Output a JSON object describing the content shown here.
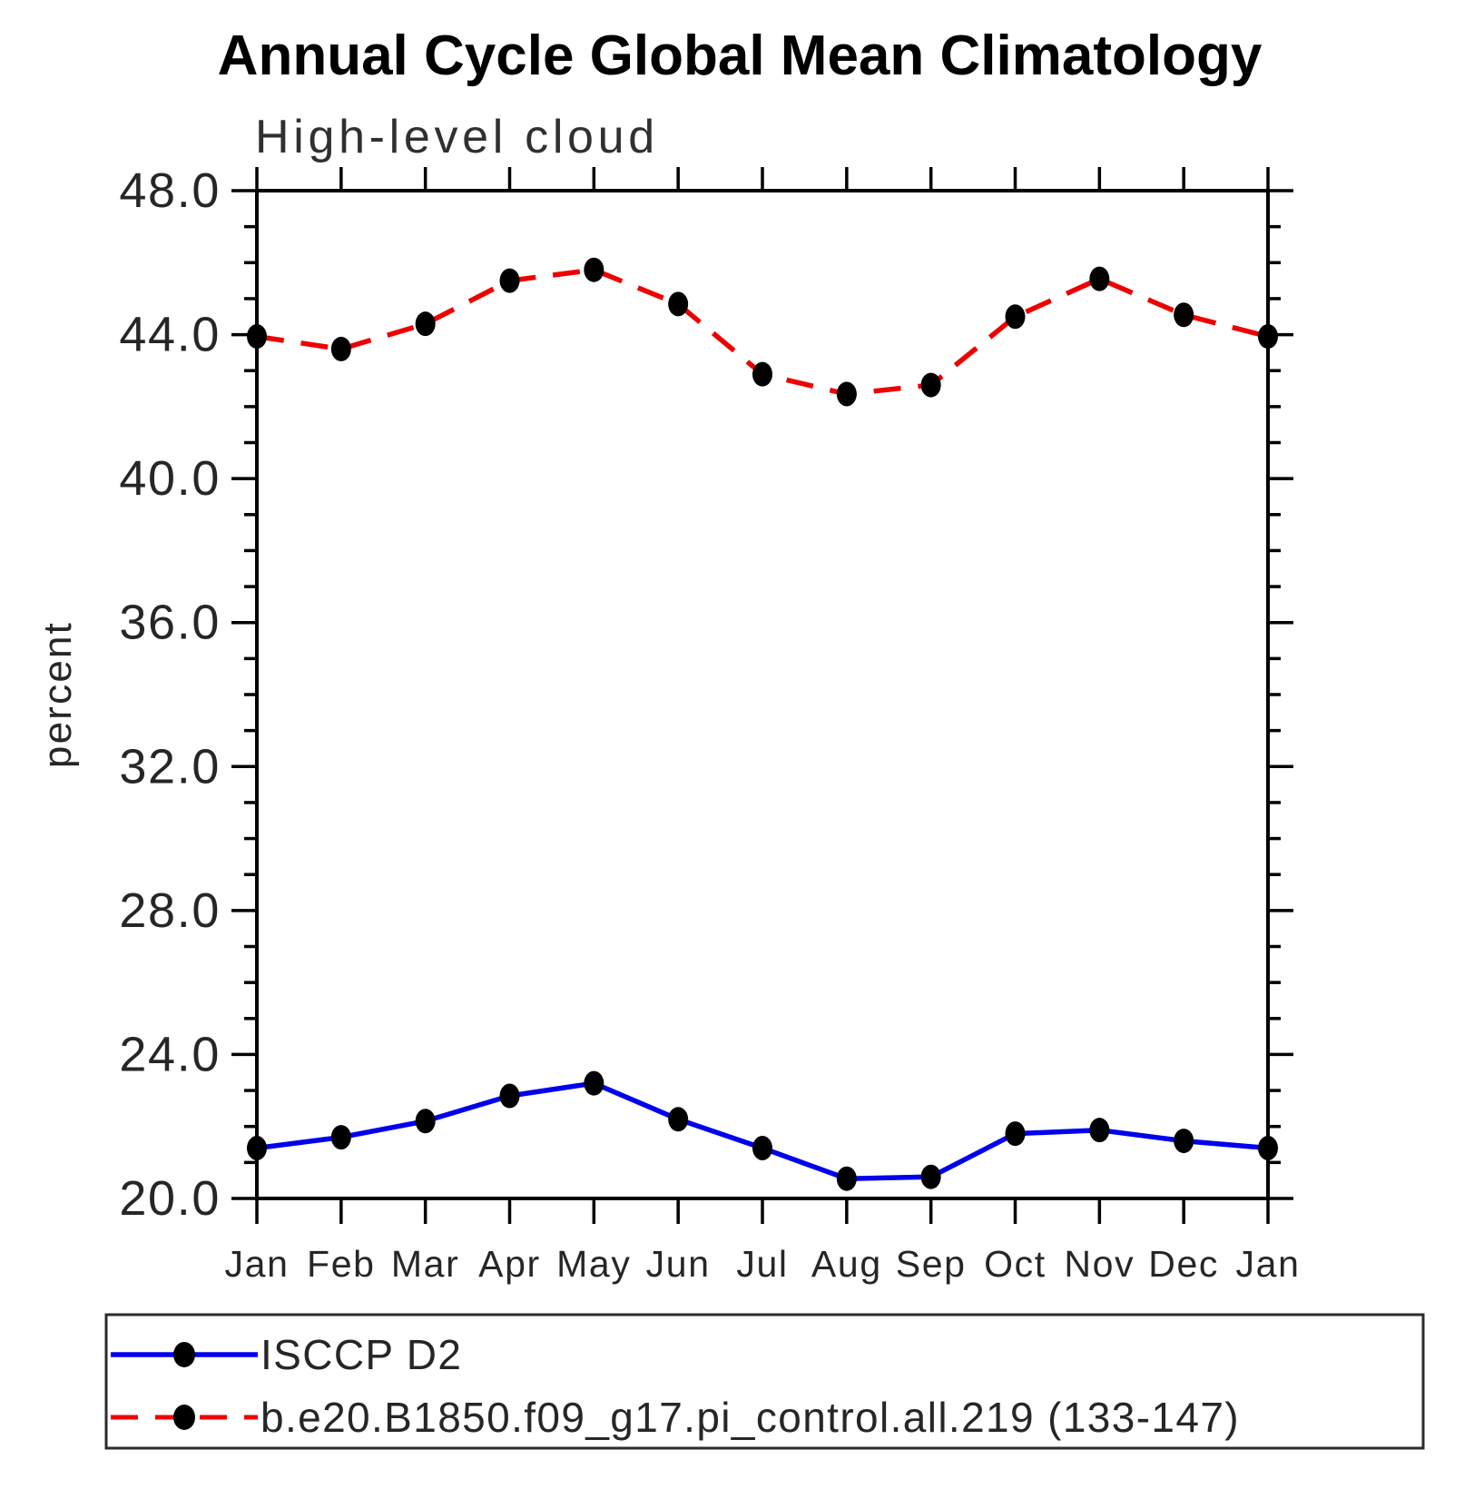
{
  "page": {
    "title": "Annual Cycle Global Mean Climatology",
    "subtitle": "High-level cloud"
  },
  "chart_data": {
    "type": "line",
    "title": "Annual Cycle Global Mean Climatology",
    "subtitle": "High-level cloud",
    "ylabel": "percent",
    "x_categories": [
      "Jan",
      "Feb",
      "Mar",
      "Apr",
      "May",
      "Jun",
      "Jul",
      "Aug",
      "Sep",
      "Oct",
      "Nov",
      "Dec",
      "Jan"
    ],
    "ylim": [
      20.0,
      48.0
    ],
    "ytick_major_values": [
      20,
      24,
      28,
      32,
      36,
      40,
      44,
      48
    ],
    "ytick_major_labels": [
      "20.0",
      "24.0",
      "28.0",
      "32.0",
      "36.0",
      "40.0",
      "44.0",
      "48.0"
    ],
    "ytick_minor_step": 1.0,
    "grid": false,
    "legend_position": "bottom-left-box",
    "series": [
      {
        "name": "ISCCP D2",
        "color": "#0000ee",
        "line_style": "solid",
        "marker": "filled-circle",
        "marker_color": "#000000",
        "values": [
          21.4,
          21.7,
          22.15,
          22.85,
          23.2,
          22.2,
          21.4,
          20.55,
          20.6,
          21.8,
          21.9,
          21.6,
          21.4
        ]
      },
      {
        "name": "b.e20.B1850.f09_g17.pi_control.all.219 (133-147)",
        "color": "#ee0000",
        "line_style": "dashed",
        "marker": "filled-circle",
        "marker_color": "#000000",
        "values": [
          43.95,
          43.6,
          44.3,
          45.5,
          45.8,
          44.85,
          42.9,
          42.35,
          42.6,
          44.5,
          45.55,
          44.55,
          43.95
        ]
      }
    ]
  }
}
